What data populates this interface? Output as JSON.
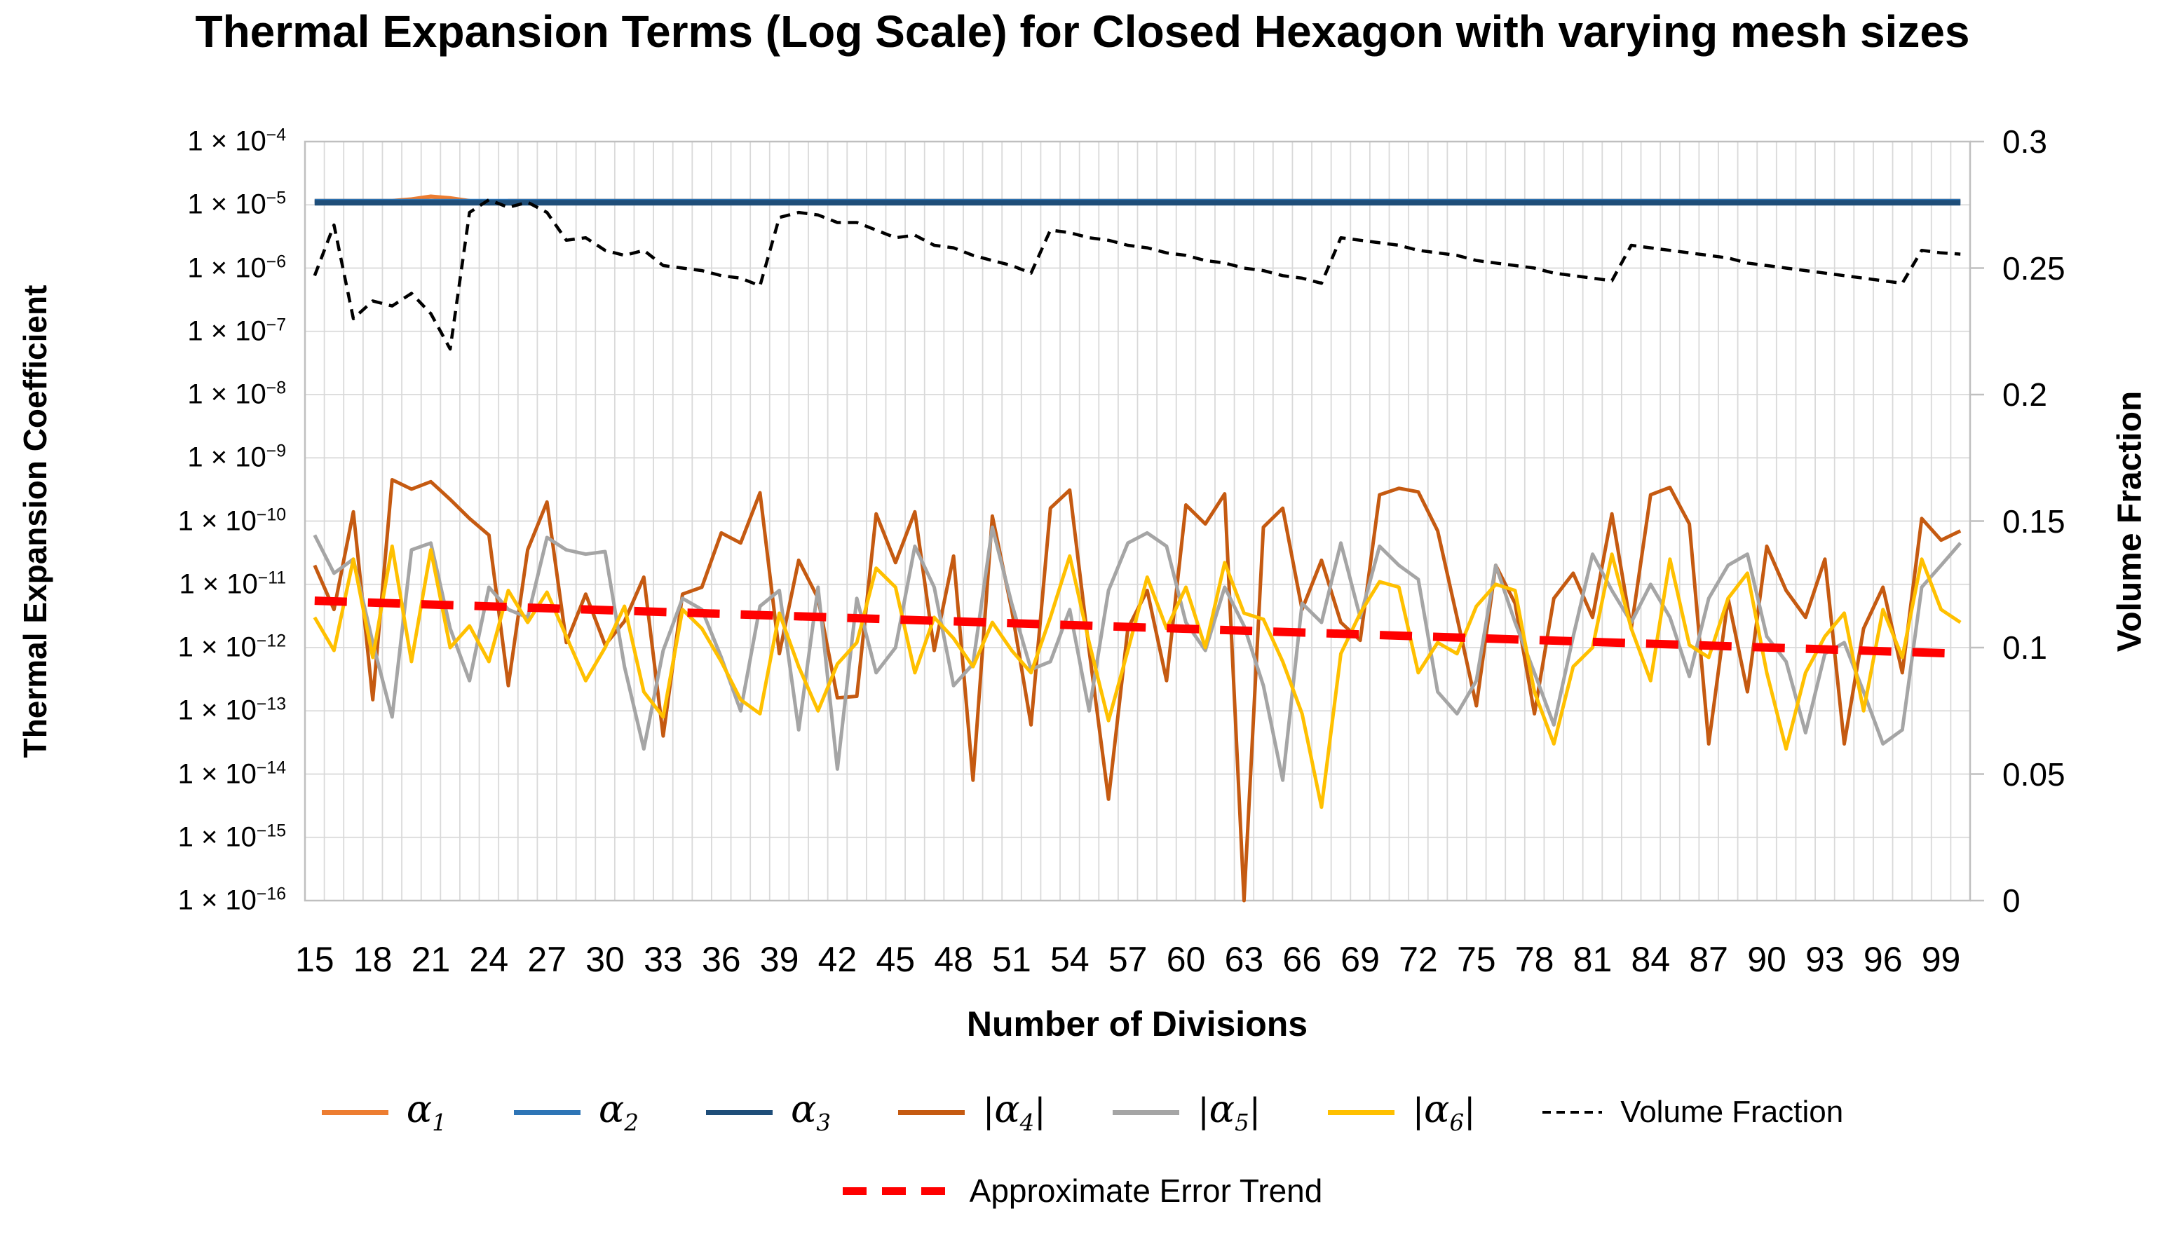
{
  "title": "Thermal Expansion Terms (Log Scale) for Closed Hexagon with varying mesh sizes",
  "left_axis": {
    "title": "Thermal Expansion Coefficient",
    "tick_base": "1 × 10",
    "tick_exponents": [
      "−4",
      "−5",
      "−6",
      "−7",
      "−8",
      "−9",
      "−10",
      "−11",
      "−12",
      "−13",
      "−14",
      "−15",
      "−16"
    ]
  },
  "right_axis": {
    "title": "Volume Fraction",
    "ticks": [
      "0.3",
      "0.25",
      "0.2",
      "0.15",
      "0.1",
      "0.05",
      "0"
    ]
  },
  "x_axis": {
    "title": "Number of Divisions",
    "tick_labels": [
      15,
      18,
      21,
      24,
      27,
      30,
      33,
      36,
      39,
      42,
      45,
      48,
      51,
      54,
      57,
      60,
      63,
      66,
      69,
      72,
      75,
      78,
      81,
      84,
      87,
      90,
      93,
      96,
      99
    ]
  },
  "colors": {
    "alpha1": "#ED7D31",
    "alpha2": "#2E75B6",
    "alpha3": "#1F4E79",
    "alpha4": "#C55A11",
    "alpha5": "#A5A5A5",
    "alpha6": "#FFC000",
    "volume_fraction": "#000000",
    "error_trend": "#FF0000",
    "gridline": "#D9D9D9",
    "plot_border": "#BFBFBF"
  },
  "legend": {
    "row1": [
      {
        "id": "alpha1",
        "symbol": "α",
        "sub": "1",
        "abs": false,
        "color": "#ED7D31",
        "line": "solid"
      },
      {
        "id": "alpha2",
        "symbol": "α",
        "sub": "2",
        "abs": false,
        "color": "#2E75B6",
        "line": "solid"
      },
      {
        "id": "alpha3",
        "symbol": "α",
        "sub": "3",
        "abs": false,
        "color": "#1F4E79",
        "line": "solid"
      },
      {
        "id": "alpha4",
        "symbol": "α",
        "sub": "4",
        "abs": true,
        "color": "#C55A11",
        "line": "solid"
      },
      {
        "id": "alpha5",
        "symbol": "α",
        "sub": "5",
        "abs": true,
        "color": "#A5A5A5",
        "line": "solid"
      },
      {
        "id": "alpha6",
        "symbol": "α",
        "sub": "6",
        "abs": true,
        "color": "#FFC000",
        "line": "solid"
      },
      {
        "id": "volume-fraction",
        "label": "Volume Fraction",
        "color": "#000000",
        "line": "dotted"
      }
    ],
    "row2": [
      {
        "id": "error-trend",
        "label": "Approximate Error Trend",
        "color": "#FF0000",
        "line": "dashed"
      }
    ]
  },
  "chart_data": {
    "type": "line",
    "x_start": 15,
    "x_end": 100,
    "x_step": 1,
    "left_ylim": [
      1e-16,
      0.0001
    ],
    "left_scale": "log",
    "right_ylim": [
      0,
      0.3
    ],
    "grid": true,
    "series": [
      {
        "name": "α1",
        "axis": "left",
        "color": "#ED7D31",
        "style": "solid",
        "constant": 1.15e-05,
        "overrides": {
          "20": 1.22e-05,
          "21": 1.35e-05,
          "22": 1.27e-05,
          "24": 1.05e-05
        }
      },
      {
        "name": "α2",
        "axis": "left",
        "color": "#2E75B6",
        "style": "solid",
        "constant": 1.12e-05
      },
      {
        "name": "α3",
        "axis": "left",
        "color": "#1F4E79",
        "style": "solid",
        "constant": 1.08e-05
      },
      {
        "name": "|α4|",
        "axis": "left",
        "color": "#C55A11",
        "style": "solid",
        "values": [
          2e-11,
          4e-12,
          1.4e-10,
          1.5e-13,
          4.5e-10,
          3.2e-10,
          4.2e-10,
          2.2e-10,
          1.1e-10,
          6e-11,
          2.5e-13,
          3.5e-11,
          2e-10,
          1.2e-12,
          7e-12,
          1.1e-12,
          2.6e-12,
          1.3e-11,
          4e-14,
          7e-12,
          9e-12,
          6.5e-11,
          4.5e-11,
          2.8e-10,
          8e-13,
          2.4e-11,
          6e-12,
          1.6e-13,
          1.7e-13,
          1.3e-10,
          2.2e-11,
          1.4e-10,
          9e-13,
          2.8e-11,
          8e-15,
          1.2e-10,
          4e-12,
          6e-14,
          1.6e-10,
          3.1e-10,
          9e-13,
          4e-15,
          2e-12,
          8e-12,
          3e-13,
          1.8e-10,
          9e-11,
          2.7e-10,
          1e-16,
          8e-11,
          1.6e-10,
          4e-12,
          2.4e-11,
          2.5e-12,
          1.3e-12,
          2.6e-10,
          3.3e-10,
          2.9e-10,
          7e-11,
          3e-12,
          1.2e-13,
          2e-11,
          5e-12,
          9e-14,
          6e-12,
          1.5e-11,
          3e-12,
          1.3e-10,
          2e-12,
          2.6e-10,
          3.4e-10,
          9e-11,
          3e-14,
          6e-12,
          2e-13,
          4e-11,
          8e-12,
          3e-12,
          2.5e-11,
          3e-14,
          2e-12,
          9e-12,
          4e-13,
          1.1e-10,
          5e-11,
          7e-11
        ]
      },
      {
        "name": "|α5|",
        "axis": "left",
        "color": "#A5A5A5",
        "style": "solid",
        "values": [
          6e-11,
          1.5e-11,
          2.5e-11,
          1.2e-12,
          8e-14,
          3.5e-11,
          4.5e-11,
          2e-12,
          3e-13,
          9e-12,
          4e-12,
          3e-12,
          5.5e-11,
          3.5e-11,
          3e-11,
          3.3e-11,
          5e-13,
          2.5e-14,
          9e-13,
          6e-12,
          4e-12,
          7e-13,
          1e-13,
          4.5e-12,
          8e-12,
          5e-14,
          9e-12,
          1.2e-14,
          6e-12,
          4e-13,
          1e-12,
          4e-11,
          9e-12,
          2.5e-13,
          5.5e-13,
          8e-11,
          5e-12,
          4.5e-13,
          6e-13,
          4e-12,
          1e-13,
          8e-12,
          4.5e-11,
          6.5e-11,
          4e-11,
          2.5e-12,
          9e-13,
          9e-12,
          2.2e-12,
          2.5e-13,
          8e-15,
          5e-12,
          2.5e-12,
          4.5e-11,
          3e-12,
          4e-11,
          2e-11,
          1.2e-11,
          2e-13,
          9e-14,
          3e-13,
          2e-11,
          2.5e-12,
          4e-13,
          6e-14,
          1.5e-12,
          3e-11,
          8e-12,
          2.5e-12,
          1e-11,
          3e-12,
          3.5e-13,
          6e-12,
          2e-11,
          3e-11,
          1.5e-12,
          6e-13,
          4.5e-14,
          8e-13,
          1.2e-12,
          2e-13,
          3e-14,
          5e-14,
          9e-12,
          2e-11,
          4.5e-11
        ]
      },
      {
        "name": "|α6|",
        "axis": "left",
        "color": "#FFC000",
        "style": "solid",
        "values": [
          3e-12,
          9e-13,
          2.5e-11,
          7e-13,
          4e-11,
          6e-13,
          3.5e-11,
          1e-12,
          2.2e-12,
          6e-13,
          8e-12,
          2.5e-12,
          7.5e-12,
          1.5e-12,
          3e-13,
          1e-12,
          4.5e-12,
          2e-13,
          8e-14,
          4e-12,
          2e-12,
          6e-13,
          1.5e-13,
          9e-14,
          3.5e-12,
          5e-13,
          1e-13,
          5.5e-13,
          1.2e-12,
          1.8e-11,
          9e-12,
          4e-13,
          3e-12,
          1.4e-12,
          5e-13,
          2.5e-12,
          9e-13,
          4e-13,
          3e-12,
          2.8e-11,
          1.2e-12,
          7e-14,
          9e-13,
          1.3e-11,
          2e-12,
          9e-12,
          1e-12,
          2.2e-11,
          3.5e-12,
          2.8e-12,
          6e-13,
          9e-14,
          3e-15,
          8e-13,
          3.5e-12,
          1.1e-11,
          9e-12,
          4e-13,
          1.2e-12,
          8e-13,
          4.5e-12,
          1e-11,
          8e-12,
          2e-13,
          3e-14,
          5e-13,
          1e-12,
          3e-11,
          2e-12,
          3e-13,
          2.5e-11,
          1.1e-12,
          7e-13,
          6e-12,
          1.5e-11,
          4e-13,
          2.5e-14,
          4e-13,
          1.5e-12,
          3.5e-12,
          1e-13,
          4e-12,
          7e-13,
          2.5e-11,
          4e-12,
          2.5e-12
        ]
      },
      {
        "name": "Volume Fraction",
        "axis": "right",
        "color": "#000000",
        "style": "dashed",
        "values": [
          0.247,
          0.267,
          0.23,
          0.237,
          0.235,
          0.24,
          0.232,
          0.218,
          0.272,
          0.277,
          0.274,
          0.276,
          0.272,
          0.261,
          0.262,
          0.257,
          0.255,
          0.257,
          0.251,
          0.25,
          0.249,
          0.247,
          0.246,
          0.243,
          0.27,
          0.272,
          0.271,
          0.268,
          0.268,
          0.265,
          0.262,
          0.263,
          0.259,
          0.258,
          0.255,
          0.253,
          0.251,
          0.248,
          0.265,
          0.264,
          0.262,
          0.261,
          0.259,
          0.258,
          0.256,
          0.255,
          0.253,
          0.252,
          0.25,
          0.249,
          0.247,
          0.246,
          0.244,
          0.262,
          0.261,
          0.26,
          0.259,
          0.257,
          0.256,
          0.255,
          0.253,
          0.252,
          0.251,
          0.25,
          0.248,
          0.247,
          0.246,
          0.245,
          0.259,
          0.258,
          0.257,
          0.256,
          0.255,
          0.254,
          0.252,
          0.251,
          0.25,
          0.249,
          0.248,
          0.247,
          0.246,
          0.245,
          0.244,
          0.257,
          0.256,
          0.2555
        ]
      },
      {
        "name": "Approximate Error Trend",
        "axis": "left",
        "color": "#FF0000",
        "style": "thick-dashed",
        "trend": {
          "x0": 15,
          "v0": 5.5e-12,
          "x1": 100,
          "v1": 8e-13
        }
      }
    ]
  }
}
